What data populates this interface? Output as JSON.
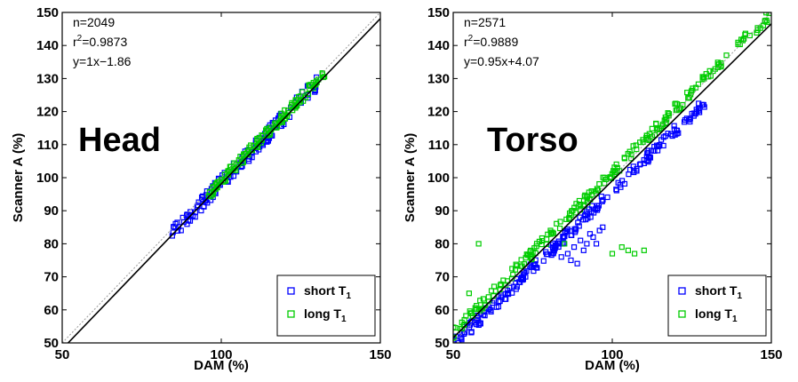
{
  "chart_data": [
    {
      "type": "scatter",
      "title": "Head",
      "xlabel": "DAM (%)",
      "ylabel": "Scanner A (%)",
      "xlim": [
        50,
        150
      ],
      "ylim": [
        50,
        150
      ],
      "xticks": [
        50,
        100,
        150
      ],
      "yticks": [
        50,
        60,
        70,
        80,
        90,
        100,
        110,
        120,
        130,
        140,
        150
      ],
      "grid": false,
      "legend_position": "bottom-right",
      "stats": {
        "n": "n=2049",
        "r2_prefix": "r",
        "r2_exp": "2",
        "r2_value": "=0.9873",
        "fit": "y=1x−1.86"
      },
      "fit_line": {
        "slope": 1.0,
        "intercept": -1.86
      },
      "identity_line": true,
      "series": [
        {
          "name": "short T",
          "subscript": "1",
          "color": "#0000ff",
          "x_range": [
            84,
            130
          ],
          "slope": 1.0,
          "intercept": -1.5,
          "spread": 2.2,
          "count": 150
        },
        {
          "name": "long T",
          "subscript": "1",
          "color": "#00cc00",
          "x_range": [
            96,
            133
          ],
          "slope": 1.0,
          "intercept": -1.0,
          "spread": 1.6,
          "count": 150
        }
      ]
    },
    {
      "type": "scatter",
      "title": "Torso",
      "xlabel": "DAM (%)",
      "ylabel": "Scanner A (%)",
      "xlim": [
        50,
        150
      ],
      "ylim": [
        50,
        150
      ],
      "xticks": [
        50,
        100,
        150
      ],
      "yticks": [
        50,
        60,
        70,
        80,
        90,
        100,
        110,
        120,
        130,
        140,
        150
      ],
      "grid": false,
      "legend_position": "bottom-right",
      "stats": {
        "n": "n=2571",
        "r2_prefix": "r",
        "r2_exp": "2",
        "r2_value": "=0.9889",
        "fit": "y=0.95x+4.07"
      },
      "fit_line": {
        "slope": 0.95,
        "intercept": 4.07
      },
      "identity_line": true,
      "series": [
        {
          "name": "short T",
          "subscript": "1",
          "color": "#0000ff",
          "x_range": [
            50,
            129
          ],
          "slope": 0.93,
          "intercept": 3.0,
          "spread": 1.8,
          "count": 220,
          "extra_points": [
            [
              88,
              79
            ],
            [
              90,
              81
            ],
            [
              92,
              80
            ],
            [
              94,
              82
            ],
            [
              96,
              84
            ],
            [
              97,
              85
            ],
            [
              86,
              77
            ],
            [
              84,
              76
            ],
            [
              89,
              74
            ],
            [
              91,
              78
            ],
            [
              93,
              83
            ],
            [
              95,
              80
            ],
            [
              87,
              75
            ]
          ]
        },
        {
          "name": "long T",
          "subscript": "1",
          "color": "#00cc00",
          "x_range": [
            50,
            150
          ],
          "slope": 0.97,
          "intercept": 4.5,
          "spread": 1.7,
          "count": 230,
          "extra_points": [
            [
              58,
              80
            ],
            [
              103,
              79
            ],
            [
              105,
              78
            ],
            [
              107,
              77
            ],
            [
              100,
              77
            ],
            [
              110,
              78
            ],
            [
              85,
              80
            ],
            [
              55,
              65
            ]
          ]
        }
      ]
    }
  ]
}
